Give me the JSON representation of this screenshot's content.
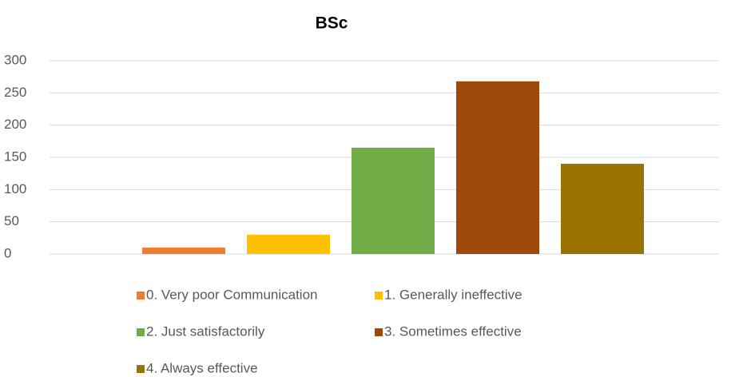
{
  "chart_data": {
    "type": "bar",
    "title": "BSc",
    "series": [
      {
        "name": "0. Very poor Communication",
        "color": "#ed7d31",
        "values": [
          10
        ]
      },
      {
        "name": "1. Generally ineffective",
        "color": "#ffc000",
        "values": [
          30
        ]
      },
      {
        "name": "2. Just satisfactorily",
        "color": "#70ad47",
        "values": [
          165
        ]
      },
      {
        "name": "3. Sometimes effective",
        "color": "#9e480e",
        "values": [
          268
        ]
      },
      {
        "name": "4. Always effective",
        "color": "#997300",
        "values": [
          140
        ]
      }
    ],
    "ylim": [
      0,
      300
    ],
    "yticks": [
      0,
      50,
      100,
      150,
      200,
      250,
      300
    ],
    "grid": true,
    "legend": "bottom"
  }
}
